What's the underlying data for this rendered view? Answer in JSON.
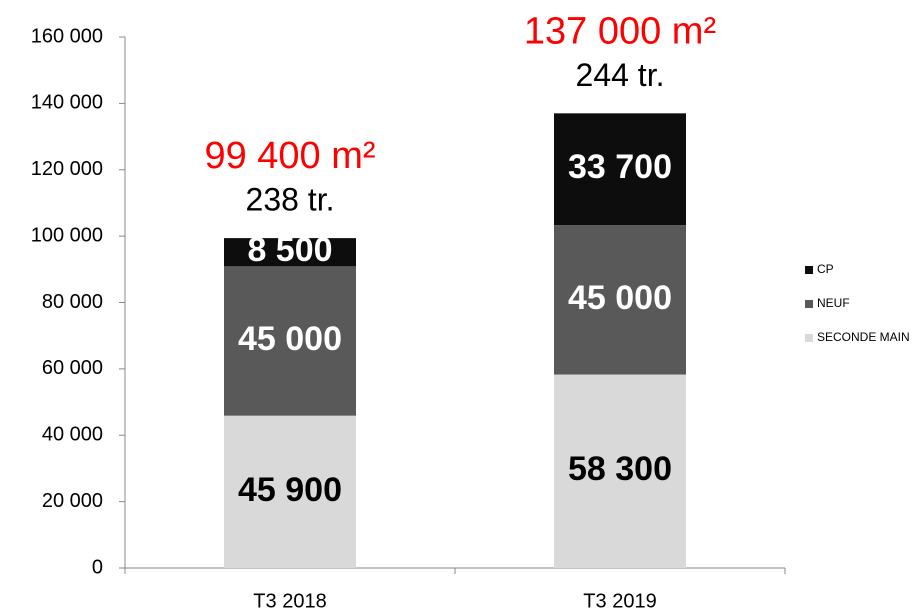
{
  "chart_data": {
    "type": "stacked_bar",
    "categories": [
      "T3 2018",
      "T3 2019"
    ],
    "series": [
      {
        "name": "SECONDE MAIN",
        "color": "#d9d9d9",
        "values": [
          45900,
          58300
        ],
        "value_labels": [
          "45 900",
          "58 300"
        ]
      },
      {
        "name": "NEUF",
        "color": "#595959",
        "values": [
          45000,
          45000
        ],
        "value_labels": [
          "45 000",
          "45 000"
        ]
      },
      {
        "name": "CP",
        "color": "#0d0d0d",
        "values": [
          8500,
          33700
        ],
        "value_labels": [
          "8 500",
          "33 700"
        ]
      }
    ],
    "total_labels": [
      "99 400 m²",
      "137 000 m²"
    ],
    "count_labels": [
      "238 tr.",
      "244 tr."
    ],
    "ylim": [
      0,
      160000
    ],
    "yticks": [
      0,
      {
        "value": 20000,
        "label": "20 000"
      },
      {
        "value": 40000,
        "label": "40 000"
      },
      {
        "value": 60000,
        "label": "60 000"
      },
      {
        "value": 80000,
        "label": "80 000"
      },
      {
        "value": 100000,
        "label": "100 000"
      },
      {
        "value": 120000,
        "label": "120 000"
      },
      {
        "value": 140000,
        "label": "140 000"
      },
      {
        "value": 160000,
        "label": "160 000"
      }
    ],
    "total_color": "#ff0000",
    "legend": "right"
  }
}
